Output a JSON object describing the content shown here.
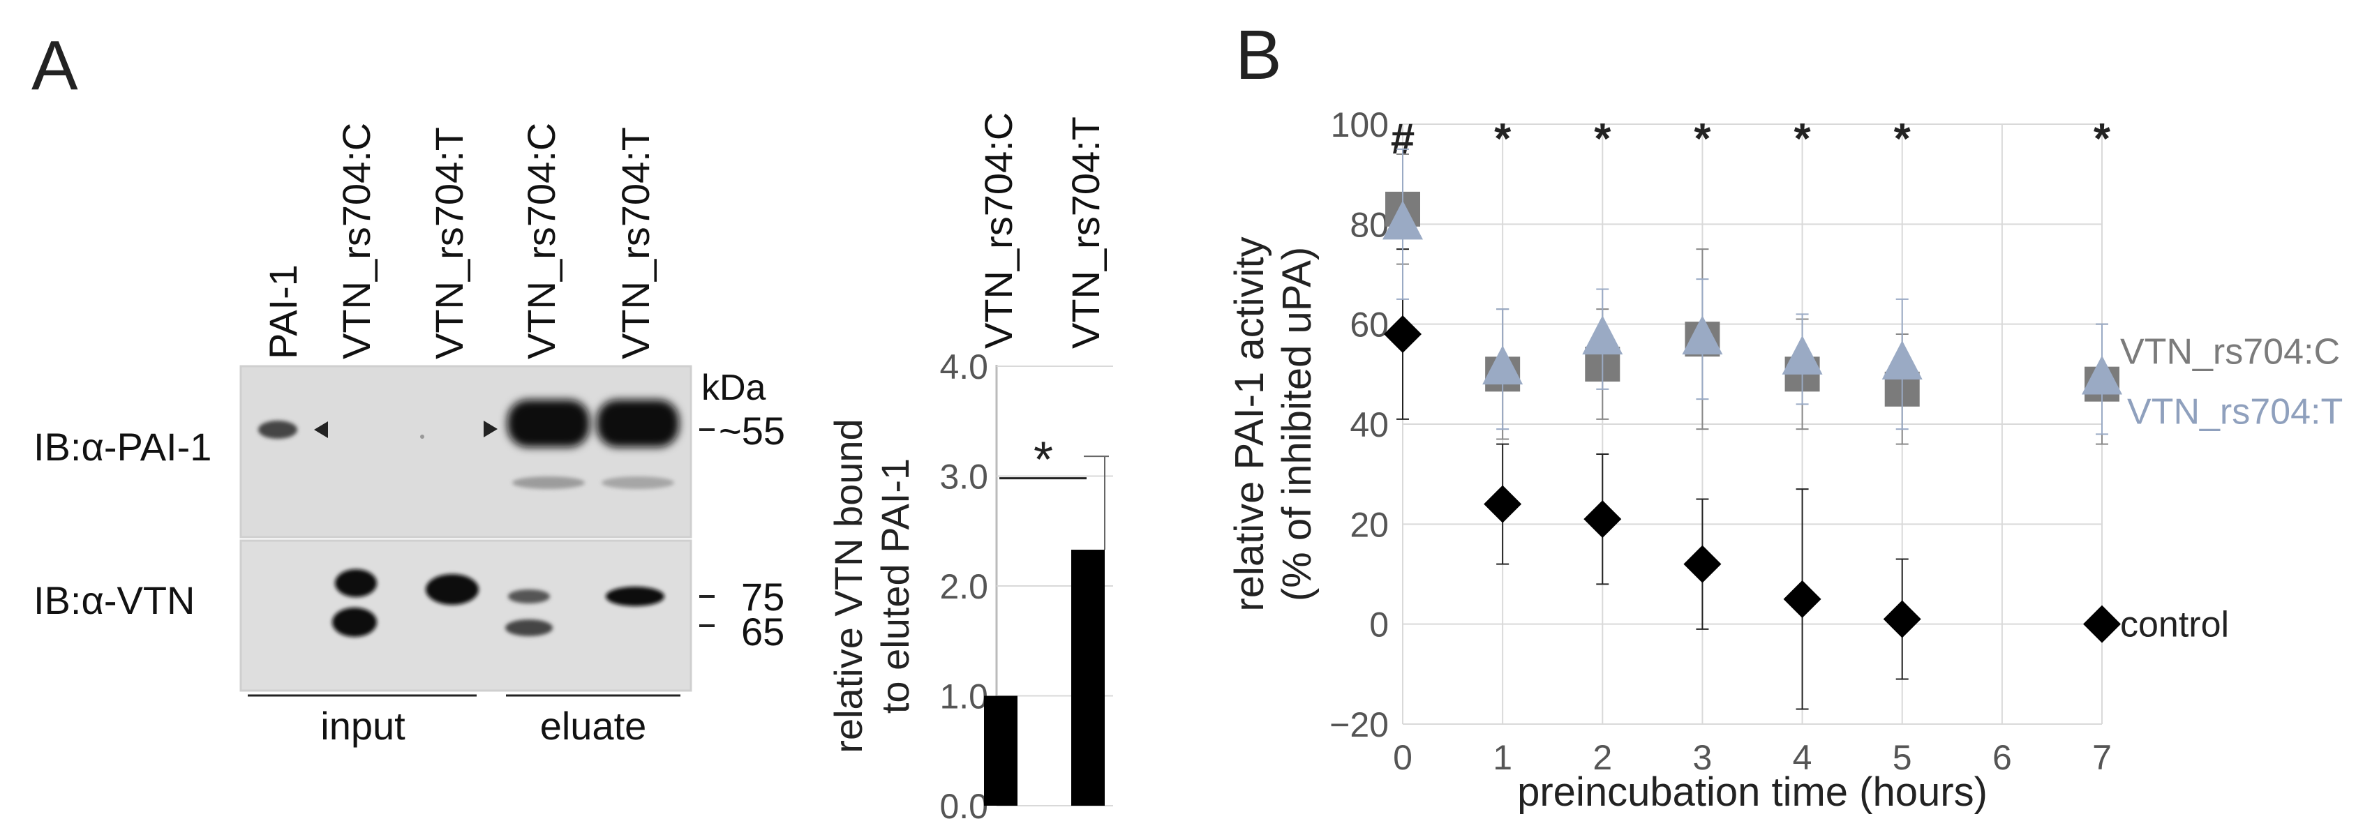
{
  "panel_a": {
    "label": "A",
    "lane_labels": [
      "PAI-1",
      "VTN_rs704:C",
      "VTN_rs704:T",
      "VTN_rs704:C",
      "VTN_rs704:T"
    ],
    "kda_label": "kDa",
    "blot_top_label": "IB:α-PAI-1",
    "blot_bottom_label": "IB:α-VTN",
    "mw_markers": [
      "~55",
      "75",
      "65"
    ],
    "group_input": "input",
    "group_eluate": "eluate"
  },
  "panel_b": {
    "label": "B",
    "significance": [
      "#",
      "*",
      "*",
      "*",
      "*",
      "*",
      "*"
    ],
    "legend": {
      "series_c": "VTN_rs704:C",
      "series_t": "VTN_rs704:T",
      "control": "control"
    }
  },
  "chart_data": [
    {
      "type": "bar",
      "categories": [
        "VTN_rs704:C",
        "VTN_rs704:T"
      ],
      "values": [
        1.0,
        2.33
      ],
      "error_upper": [
        0.0,
        0.85
      ],
      "ylabel_line1": "relative VTN bound",
      "ylabel_line2": "to eluted PAI-1",
      "ylim": [
        0,
        4.0
      ],
      "yticks": [
        "0.0",
        "1.0",
        "2.0",
        "3.0",
        "4.0"
      ],
      "significance": "*"
    },
    {
      "type": "scatter",
      "xlabel": "preincubation time (hours)",
      "ylabel_line1": "relative PAI-1 activity",
      "ylabel_line2": "(% of inhibited uPA)",
      "xlim": [
        0,
        7
      ],
      "ylim": [
        -20,
        100
      ],
      "xticks": [
        "0",
        "1",
        "2",
        "3",
        "4",
        "5",
        "6",
        "7"
      ],
      "yticks": [
        "−20",
        "0",
        "20",
        "40",
        "60",
        "80",
        "100"
      ],
      "series": [
        {
          "name": "VTN_rs704:C",
          "color": "#7b7b7b",
          "marker": "square",
          "x": [
            0,
            1,
            2,
            3,
            4,
            5,
            7
          ],
          "y": [
            83,
            50,
            52,
            57,
            50,
            47,
            48
          ],
          "err": [
            11,
            13,
            11,
            18,
            11,
            11,
            12
          ]
        },
        {
          "name": "VTN_rs704:T",
          "color": "#9aaac4",
          "marker": "triangle",
          "x": [
            0,
            1,
            2,
            3,
            4,
            5,
            7
          ],
          "y": [
            80,
            51,
            57,
            57,
            53,
            52,
            49
          ],
          "err": [
            15,
            12,
            10,
            12,
            9,
            13,
            11
          ]
        },
        {
          "name": "control",
          "color": "#000000",
          "marker": "diamond",
          "x": [
            0,
            1,
            2,
            3,
            4,
            5,
            7
          ],
          "y": [
            58,
            24,
            21,
            12,
            5,
            1,
            0
          ],
          "err": [
            17,
            12,
            13,
            13,
            22,
            12,
            0
          ]
        }
      ]
    }
  ]
}
